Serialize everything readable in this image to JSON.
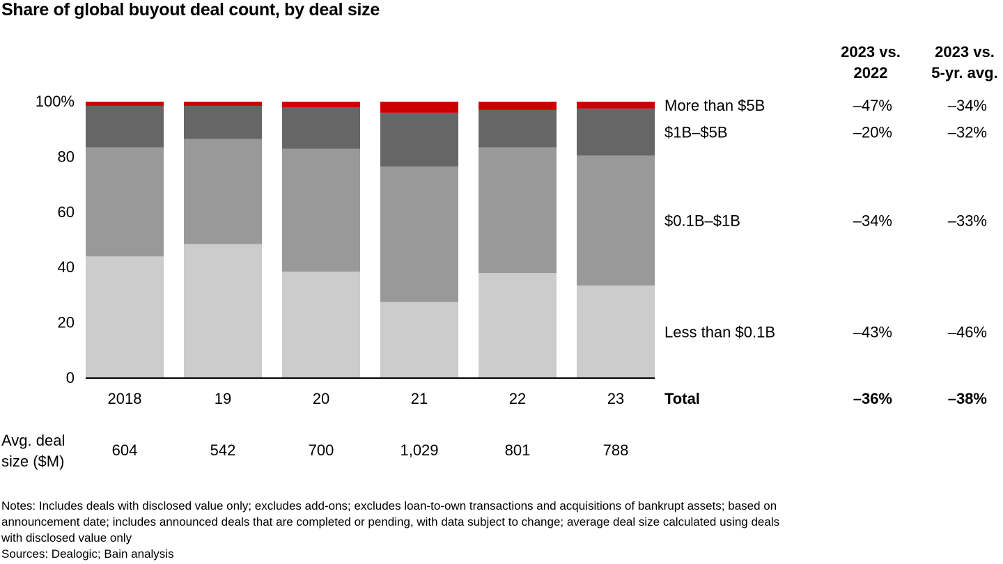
{
  "title": "Share of global buyout deal count, by deal size",
  "column_headers": {
    "vs_2022": [
      "2023 vs.",
      "2022"
    ],
    "vs_5yr": [
      "2023 vs.",
      "5-yr. avg."
    ]
  },
  "colors": {
    "more_than_5b": "#cc0000",
    "1b_5b": "#666666",
    "0_1b_1b": "#999999",
    "less_than_0_1b": "#cccccc"
  },
  "chart_data": {
    "type": "bar",
    "stacked": true,
    "categories": [
      "2018",
      "19",
      "20",
      "21",
      "22",
      "23"
    ],
    "ylim": [
      0,
      100
    ],
    "yticks": [
      "0",
      "20",
      "40",
      "60",
      "80",
      "100%"
    ],
    "series": [
      {
        "name": "Less than $0.1B",
        "key": "less_than_0_1b",
        "values": [
          44,
          48.5,
          38.5,
          27.5,
          38,
          33.5
        ]
      },
      {
        "name": "$0.1B–$1B",
        "key": "0_1b_1b",
        "values": [
          39.5,
          38,
          44.5,
          49,
          45.5,
          47
        ]
      },
      {
        "name": "$1B–$5B",
        "key": "1b_5b",
        "values": [
          15,
          12,
          15,
          19.5,
          13.5,
          17
        ]
      },
      {
        "name": "More than $5B",
        "key": "more_than_5b",
        "values": [
          1.5,
          1.5,
          2,
          4,
          3,
          2.5
        ]
      }
    ],
    "legend": [
      {
        "name": "More than $5B",
        "vs_2022": "–47%",
        "vs_5yr": "–34%"
      },
      {
        "name": "$1B–$5B",
        "vs_2022": "–20%",
        "vs_5yr": "–32%"
      },
      {
        "name": "$0.1B–$1B",
        "vs_2022": "–34%",
        "vs_5yr": "–33%"
      },
      {
        "name": "Less than $0.1B",
        "vs_2022": "–43%",
        "vs_5yr": "–46%"
      }
    ],
    "total": {
      "name": "Total",
      "vs_2022": "–36%",
      "vs_5yr": "–38%"
    },
    "avg_deal_size": {
      "label": [
        "Avg. deal",
        "size ($M)"
      ],
      "values": [
        "604",
        "542",
        "700",
        "1,029",
        "801",
        "788"
      ]
    }
  },
  "notes": {
    "lines": [
      "Notes: Includes deals with disclosed value only; excludes add-ons; excludes loan-to-own transactions and acquisitions of bankrupt assets; based on",
      "announcement date; includes announced deals that are completed or pending, with data subject to change; average deal size calculated using deals",
      "with disclosed value only"
    ],
    "sources": "Sources: Dealogic; Bain analysis"
  }
}
